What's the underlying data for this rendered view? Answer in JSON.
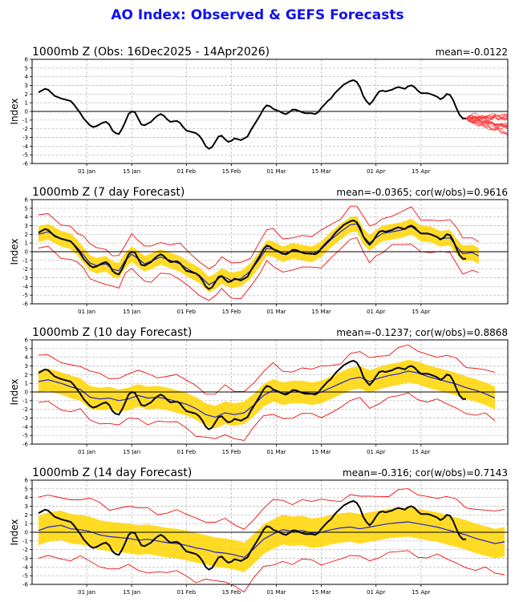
{
  "page": {
    "title": "AO Index: Observed & GEFS Forecasts"
  },
  "colors": {
    "title": "#1010ee",
    "observed": "#000000",
    "ens_mean": "#2222cc",
    "spread_band": "#ffd500",
    "envelope": "#ee1111",
    "members": "#ff3333"
  },
  "chart_data": [
    {
      "type": "line",
      "title": "1000mb Z (Obs: 16Dec2025 - 14Apr2026)",
      "stat": "mean=-0.0122",
      "ylabel": "Index",
      "ylim": [
        -6,
        6
      ],
      "yticks": [
        -6,
        -5,
        -4,
        -3,
        -2,
        -1,
        0,
        1,
        2,
        3,
        4,
        5,
        6
      ],
      "xticks": [
        "01 Jan",
        "15 Jan",
        "01 Feb",
        "15 Feb",
        "01 Mar",
        "15 Mar",
        "01 Apr",
        "15 Apr"
      ],
      "grid": true,
      "observed": [
        [
          -15,
          2.2
        ],
        [
          -13,
          2.6
        ],
        [
          -12,
          2.5
        ],
        [
          -10,
          1.8
        ],
        [
          -8,
          1.5
        ],
        [
          -5,
          1.2
        ],
        [
          -4,
          0.8
        ],
        [
          -2,
          -0.2
        ],
        [
          -1,
          -0.8
        ],
        [
          1,
          -1.6
        ],
        [
          2,
          -1.8
        ],
        [
          3,
          -1.7
        ],
        [
          5,
          -1.3
        ],
        [
          6,
          -1.2
        ],
        [
          7,
          -1.5
        ],
        [
          8,
          -2.2
        ],
        [
          9,
          -2.5
        ],
        [
          10,
          -2.6
        ],
        [
          11,
          -2.0
        ],
        [
          12,
          -1.2
        ],
        [
          13,
          -0.3
        ],
        [
          14,
          0.0
        ],
        [
          15,
          -0.1
        ],
        [
          16,
          -0.8
        ],
        [
          17,
          -1.5
        ],
        [
          18,
          -1.6
        ],
        [
          20,
          -1.2
        ],
        [
          21,
          -0.8
        ],
        [
          22,
          -0.5
        ],
        [
          23,
          -0.3
        ],
        [
          24,
          -0.5
        ],
        [
          25,
          -0.9
        ],
        [
          26,
          -1.2
        ],
        [
          28,
          -1.1
        ],
        [
          29,
          -1.3
        ],
        [
          30,
          -1.8
        ],
        [
          31,
          -2.2
        ],
        [
          33,
          -2.4
        ],
        [
          34,
          -2.5
        ],
        [
          35,
          -2.8
        ],
        [
          36,
          -3.3
        ],
        [
          37,
          -4.0
        ],
        [
          38,
          -4.3
        ],
        [
          39,
          -4.1
        ],
        [
          40,
          -3.5
        ],
        [
          41,
          -2.9
        ],
        [
          42,
          -2.8
        ],
        [
          43,
          -3.2
        ],
        [
          44,
          -3.5
        ],
        [
          45,
          -3.4
        ],
        [
          46,
          -3.1
        ],
        [
          47,
          -3.2
        ],
        [
          48,
          -3.3
        ],
        [
          50,
          -2.9
        ],
        [
          51,
          -2.2
        ],
        [
          52,
          -1.6
        ],
        [
          53,
          -1.0
        ],
        [
          54,
          -0.4
        ],
        [
          55,
          0.3
        ],
        [
          56,
          0.7
        ],
        [
          57,
          0.6
        ],
        [
          58,
          0.3
        ],
        [
          60,
          0.0
        ],
        [
          61,
          -0.2
        ],
        [
          62,
          -0.3
        ],
        [
          63,
          -0.1
        ],
        [
          64,
          0.2
        ],
        [
          65,
          0.2
        ],
        [
          67,
          -0.1
        ],
        [
          68,
          -0.2
        ],
        [
          70,
          -0.2
        ],
        [
          71,
          -0.3
        ],
        [
          72,
          -0.1
        ],
        [
          73,
          0.4
        ],
        [
          75,
          1.2
        ],
        [
          76,
          1.5
        ],
        [
          77,
          2.0
        ],
        [
          78,
          2.4
        ],
        [
          80,
          3.1
        ],
        [
          82,
          3.5
        ],
        [
          83,
          3.6
        ],
        [
          84,
          3.4
        ],
        [
          85,
          2.8
        ],
        [
          86,
          1.8
        ],
        [
          87,
          1.2
        ],
        [
          88,
          0.8
        ],
        [
          89,
          1.2
        ],
        [
          90,
          1.8
        ],
        [
          91,
          2.3
        ],
        [
          92,
          2.4
        ],
        [
          93,
          2.3
        ],
        [
          95,
          2.5
        ],
        [
          96,
          2.7
        ],
        [
          97,
          2.8
        ],
        [
          99,
          2.6
        ],
        [
          100,
          2.9
        ],
        [
          101,
          3.0
        ],
        [
          102,
          2.8
        ],
        [
          103,
          2.4
        ],
        [
          104,
          2.1
        ],
        [
          106,
          2.1
        ],
        [
          107,
          2.0
        ],
        [
          109,
          1.7
        ],
        [
          110,
          1.4
        ],
        [
          111,
          1.6
        ],
        [
          112,
          2.0
        ],
        [
          113,
          1.9
        ],
        [
          114,
          1.3
        ],
        [
          115,
          0.4
        ],
        [
          116,
          -0.4
        ],
        [
          117,
          -0.8
        ],
        [
          118,
          -0.8
        ]
      ]
    },
    {
      "type": "line",
      "title": "1000mb Z (7 day Forecast)",
      "stat": "mean=-0.0365; cor(w/obs)=0.9616",
      "ylabel": "Index",
      "ylim": [
        -6,
        6
      ],
      "yticks": [
        -6,
        -5,
        -4,
        -3,
        -2,
        -1,
        0,
        1,
        2,
        3,
        4,
        5,
        6
      ],
      "xticks": [
        "01 Jan",
        "15 Jan",
        "01 Feb",
        "15 Feb",
        "01 Mar",
        "15 Mar",
        "01 Apr",
        "15 Apr"
      ],
      "grid": true,
      "forecast_mean": [
        [
          -15,
          2.0
        ],
        [
          -12,
          2.3
        ],
        [
          -8,
          1.5
        ],
        [
          -5,
          1.2
        ],
        [
          -3,
          0.5
        ],
        [
          -1,
          -0.4
        ],
        [
          1,
          -1.3
        ],
        [
          3,
          -1.6
        ],
        [
          6,
          -1.4
        ],
        [
          8,
          -2.0
        ],
        [
          10,
          -2.2
        ],
        [
          12,
          -1.0
        ],
        [
          14,
          -0.3
        ],
        [
          16,
          -0.8
        ],
        [
          18,
          -1.4
        ],
        [
          20,
          -1.1
        ],
        [
          23,
          -0.6
        ],
        [
          26,
          -1.0
        ],
        [
          29,
          -1.4
        ],
        [
          32,
          -2.1
        ],
        [
          35,
          -2.7
        ],
        [
          38,
          -3.8
        ],
        [
          40,
          -3.4
        ],
        [
          42,
          -2.8
        ],
        [
          45,
          -3.3
        ],
        [
          48,
          -3.1
        ],
        [
          51,
          -2.2
        ],
        [
          54,
          -0.7
        ],
        [
          56,
          0.4
        ],
        [
          58,
          0.3
        ],
        [
          61,
          -0.3
        ],
        [
          64,
          0.1
        ],
        [
          67,
          -0.1
        ],
        [
          70,
          -0.3
        ],
        [
          73,
          0.3
        ],
        [
          76,
          1.4
        ],
        [
          79,
          2.3
        ],
        [
          82,
          3.1
        ],
        [
          84,
          3.2
        ],
        [
          86,
          1.8
        ],
        [
          88,
          1.0
        ],
        [
          90,
          1.6
        ],
        [
          92,
          2.1
        ],
        [
          95,
          2.3
        ],
        [
          98,
          2.5
        ],
        [
          101,
          2.9
        ],
        [
          104,
          2.1
        ],
        [
          107,
          2.0
        ],
        [
          110,
          1.5
        ],
        [
          113,
          1.6
        ],
        [
          115,
          0.6
        ],
        [
          117,
          -0.2
        ],
        [
          120,
          -0.1
        ],
        [
          122,
          -0.5
        ]
      ],
      "spread_halfwidth": 0.9,
      "envelope_halfwidth": 1.9
    },
    {
      "type": "line",
      "title": "1000mb Z (10 day Forecast)",
      "stat": "mean=-0.1237; cor(w/obs)=0.8868",
      "ylabel": "Index",
      "ylim": [
        -6,
        6
      ],
      "yticks": [
        -6,
        -5,
        -4,
        -3,
        -2,
        -1,
        0,
        1,
        2,
        3,
        4,
        5,
        6
      ],
      "xticks": [
        "01 Jan",
        "15 Jan",
        "01 Feb",
        "15 Feb",
        "01 Mar",
        "15 Mar",
        "01 Apr",
        "15 Apr"
      ],
      "grid": true,
      "forecast_mean": [
        [
          -15,
          1.2
        ],
        [
          -12,
          1.4
        ],
        [
          -8,
          1.0
        ],
        [
          -5,
          0.6
        ],
        [
          -2,
          0.3
        ],
        [
          1,
          -0.6
        ],
        [
          4,
          -0.8
        ],
        [
          7,
          -0.7
        ],
        [
          10,
          -1.0
        ],
        [
          13,
          -0.8
        ],
        [
          16,
          -0.4
        ],
        [
          19,
          -0.7
        ],
        [
          22,
          -0.6
        ],
        [
          25,
          -0.8
        ],
        [
          28,
          -1.1
        ],
        [
          31,
          -1.4
        ],
        [
          34,
          -1.9
        ],
        [
          37,
          -2.6
        ],
        [
          40,
          -2.9
        ],
        [
          43,
          -2.4
        ],
        [
          46,
          -2.6
        ],
        [
          49,
          -2.4
        ],
        [
          52,
          -1.5
        ],
        [
          55,
          -0.4
        ],
        [
          58,
          0.2
        ],
        [
          61,
          -0.2
        ],
        [
          64,
          0.0
        ],
        [
          67,
          0.0
        ],
        [
          70,
          -0.2
        ],
        [
          73,
          0.0
        ],
        [
          76,
          0.5
        ],
        [
          79,
          1.0
        ],
        [
          82,
          1.5
        ],
        [
          85,
          1.7
        ],
        [
          88,
          1.2
        ],
        [
          91,
          1.6
        ],
        [
          94,
          1.9
        ],
        [
          97,
          2.1
        ],
        [
          100,
          2.4
        ],
        [
          103,
          2.2
        ],
        [
          106,
          1.8
        ],
        [
          109,
          1.5
        ],
        [
          112,
          1.2
        ],
        [
          115,
          0.9
        ],
        [
          118,
          0.5
        ],
        [
          121,
          0.2
        ],
        [
          124,
          -0.2
        ],
        [
          127,
          -0.7
        ]
      ],
      "spread_halfwidth": 1.3,
      "envelope_halfwidth": 2.7
    },
    {
      "type": "line",
      "title": "1000mb Z (14 day Forecast)",
      "stat": "mean=-0.316; cor(w/obs)=0.7143",
      "ylabel": "Index",
      "ylim": [
        -6,
        6
      ],
      "yticks": [
        -6,
        -5,
        -4,
        -3,
        -2,
        -1,
        0,
        1,
        2,
        3,
        4,
        5,
        6
      ],
      "xticks": [
        "01 Jan",
        "15 Jan",
        "01 Feb",
        "15 Feb",
        "01 Mar",
        "15 Mar",
        "01 Apr",
        "15 Apr"
      ],
      "grid": true,
      "forecast_mean": [
        [
          -15,
          0.2
        ],
        [
          -12,
          0.6
        ],
        [
          -8,
          0.8
        ],
        [
          -5,
          0.4
        ],
        [
          -2,
          0.3
        ],
        [
          1,
          0.1
        ],
        [
          4,
          -0.3
        ],
        [
          7,
          -0.5
        ],
        [
          10,
          -0.6
        ],
        [
          13,
          -0.7
        ],
        [
          16,
          -0.9
        ],
        [
          19,
          -0.8
        ],
        [
          22,
          -1.0
        ],
        [
          25,
          -1.2
        ],
        [
          28,
          -1.3
        ],
        [
          31,
          -1.5
        ],
        [
          34,
          -1.8
        ],
        [
          37,
          -2.0
        ],
        [
          40,
          -2.3
        ],
        [
          43,
          -2.4
        ],
        [
          46,
          -2.6
        ],
        [
          49,
          -2.9
        ],
        [
          52,
          -1.9
        ],
        [
          55,
          -0.8
        ],
        [
          58,
          -0.2
        ],
        [
          61,
          0.3
        ],
        [
          64,
          0.1
        ],
        [
          67,
          0.2
        ],
        [
          70,
          -0.1
        ],
        [
          73,
          0.0
        ],
        [
          76,
          0.3
        ],
        [
          79,
          0.5
        ],
        [
          82,
          0.6
        ],
        [
          85,
          0.4
        ],
        [
          88,
          0.6
        ],
        [
          91,
          0.8
        ],
        [
          94,
          1.0
        ],
        [
          97,
          1.1
        ],
        [
          100,
          1.2
        ],
        [
          103,
          1.0
        ],
        [
          106,
          0.8
        ],
        [
          109,
          0.6
        ],
        [
          112,
          0.3
        ],
        [
          115,
          0.0
        ],
        [
          118,
          -0.3
        ],
        [
          121,
          -0.7
        ],
        [
          124,
          -1.0
        ],
        [
          127,
          -1.3
        ],
        [
          130,
          -1.1
        ]
      ],
      "spread_halfwidth": 1.7,
      "envelope_halfwidth": 3.5
    }
  ]
}
